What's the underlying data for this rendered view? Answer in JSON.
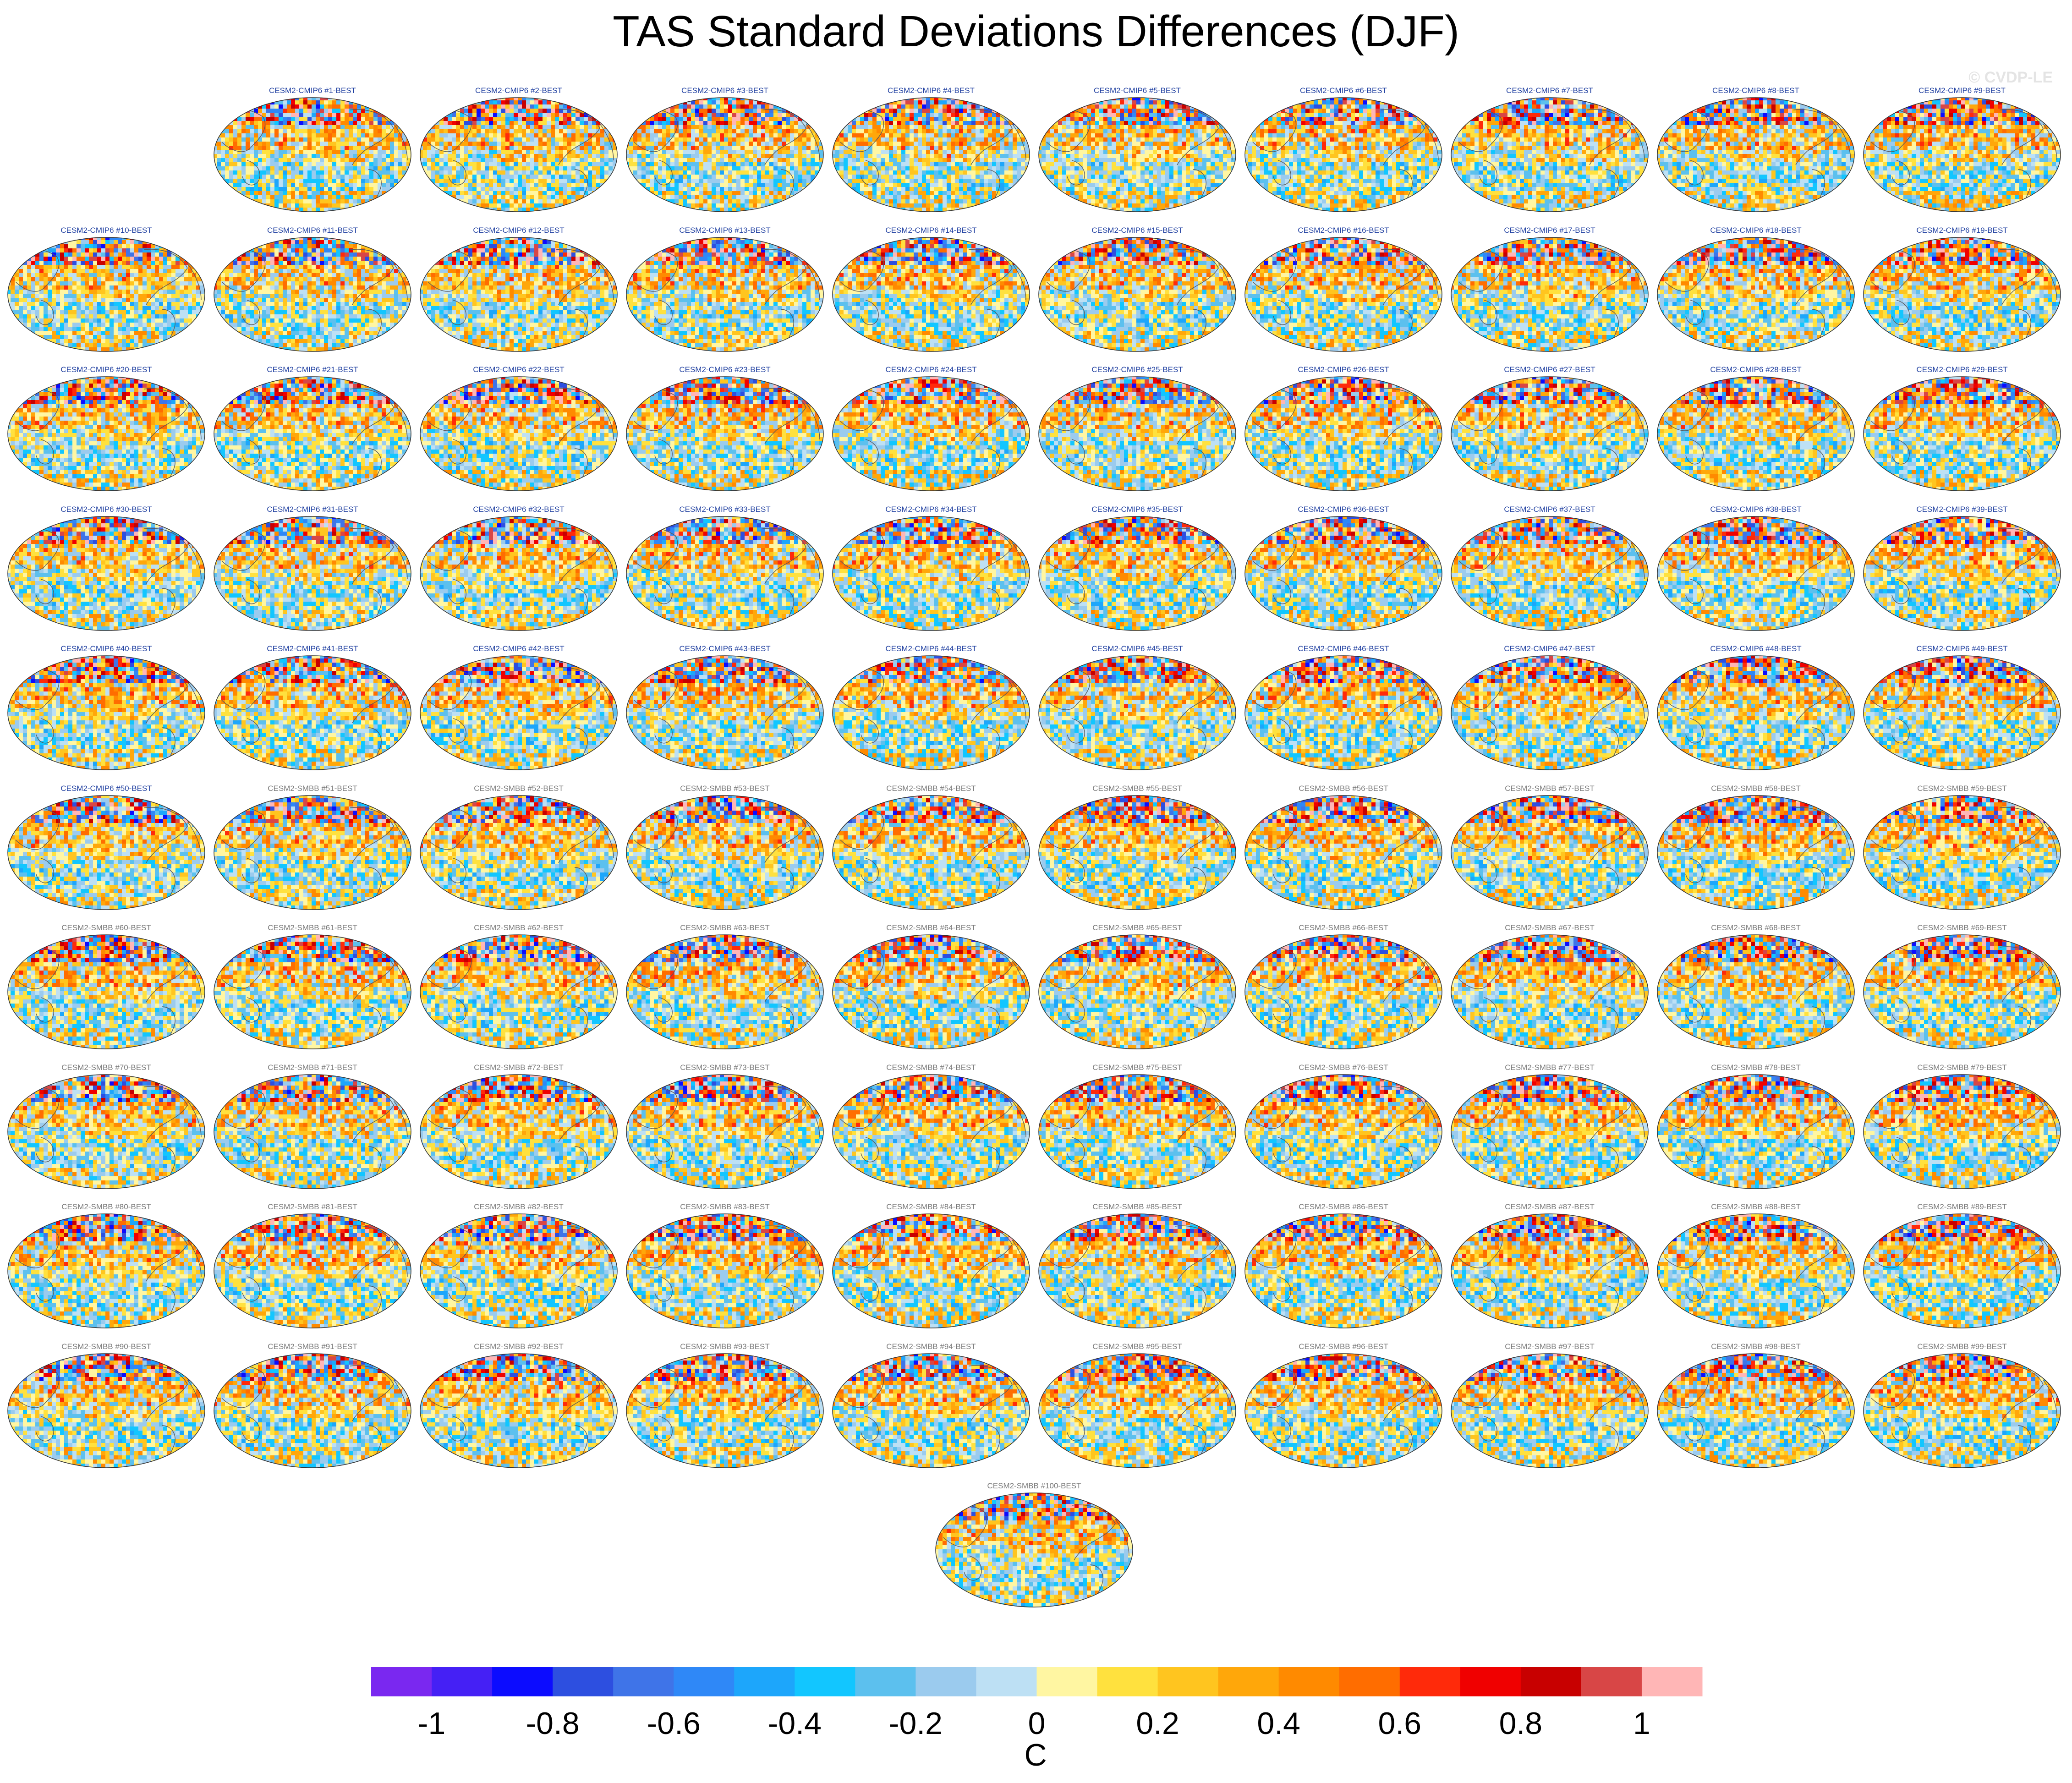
{
  "title": "TAS Standard Deviations Differences (DJF)",
  "watermark": "© CVDP-LE",
  "chart_data": {
    "type": "map-panels",
    "variable": "TAS",
    "season": "DJF",
    "projection": "Robinson (global, Pacific-centered)",
    "panels": [
      "CESM2-CMIP6 #1-BEST",
      "CESM2-CMIP6 #2-BEST",
      "CESM2-CMIP6 #3-BEST",
      "CESM2-CMIP6 #4-BEST",
      "CESM2-CMIP6 #5-BEST",
      "CESM2-CMIP6 #6-BEST",
      "CESM2-CMIP6 #7-BEST",
      "CESM2-CMIP6 #8-BEST",
      "CESM2-CMIP6 #9-BEST",
      "CESM2-CMIP6 #10-BEST",
      "CESM2-CMIP6 #11-BEST",
      "CESM2-CMIP6 #12-BEST",
      "CESM2-CMIP6 #13-BEST",
      "CESM2-CMIP6 #14-BEST",
      "CESM2-CMIP6 #15-BEST",
      "CESM2-CMIP6 #16-BEST",
      "CESM2-CMIP6 #17-BEST",
      "CESM2-CMIP6 #18-BEST",
      "CESM2-CMIP6 #19-BEST",
      "CESM2-CMIP6 #20-BEST",
      "CESM2-CMIP6 #21-BEST",
      "CESM2-CMIP6 #22-BEST",
      "CESM2-CMIP6 #23-BEST",
      "CESM2-CMIP6 #24-BEST",
      "CESM2-CMIP6 #25-BEST",
      "CESM2-CMIP6 #26-BEST",
      "CESM2-CMIP6 #27-BEST",
      "CESM2-CMIP6 #28-BEST",
      "CESM2-CMIP6 #29-BEST",
      "CESM2-CMIP6 #30-BEST",
      "CESM2-CMIP6 #31-BEST",
      "CESM2-CMIP6 #32-BEST",
      "CESM2-CMIP6 #33-BEST",
      "CESM2-CMIP6 #34-BEST",
      "CESM2-CMIP6 #35-BEST",
      "CESM2-CMIP6 #36-BEST",
      "CESM2-CMIP6 #37-BEST",
      "CESM2-CMIP6 #38-BEST",
      "CESM2-CMIP6 #39-BEST",
      "CESM2-CMIP6 #40-BEST",
      "CESM2-CMIP6 #41-BEST",
      "CESM2-CMIP6 #42-BEST",
      "CESM2-CMIP6 #43-BEST",
      "CESM2-CMIP6 #44-BEST",
      "CESM2-CMIP6 #45-BEST",
      "CESM2-CMIP6 #46-BEST",
      "CESM2-CMIP6 #47-BEST",
      "CESM2-CMIP6 #48-BEST",
      "CESM2-CMIP6 #49-BEST",
      "CESM2-CMIP6 #50-BEST",
      "CESM2-SMBB #51-BEST",
      "CESM2-SMBB #52-BEST",
      "CESM2-SMBB #53-BEST",
      "CESM2-SMBB #54-BEST",
      "CESM2-SMBB #55-BEST",
      "CESM2-SMBB #56-BEST",
      "CESM2-SMBB #57-BEST",
      "CESM2-SMBB #58-BEST",
      "CESM2-SMBB #59-BEST",
      "CESM2-SMBB #60-BEST",
      "CESM2-SMBB #61-BEST",
      "CESM2-SMBB #62-BEST",
      "CESM2-SMBB #63-BEST",
      "CESM2-SMBB #64-BEST",
      "CESM2-SMBB #65-BEST",
      "CESM2-SMBB #66-BEST",
      "CESM2-SMBB #67-BEST",
      "CESM2-SMBB #68-BEST",
      "CESM2-SMBB #69-BEST",
      "CESM2-SMBB #70-BEST",
      "CESM2-SMBB #71-BEST",
      "CESM2-SMBB #72-BEST",
      "CESM2-SMBB #73-BEST",
      "CESM2-SMBB #74-BEST",
      "CESM2-SMBB #75-BEST",
      "CESM2-SMBB #76-BEST",
      "CESM2-SMBB #77-BEST",
      "CESM2-SMBB #78-BEST",
      "CESM2-SMBB #79-BEST",
      "CESM2-SMBB #80-BEST",
      "CESM2-SMBB #81-BEST",
      "CESM2-SMBB #82-BEST",
      "CESM2-SMBB #83-BEST",
      "CESM2-SMBB #84-BEST",
      "CESM2-SMBB #85-BEST",
      "CESM2-SMBB #86-BEST",
      "CESM2-SMBB #87-BEST",
      "CESM2-SMBB #88-BEST",
      "CESM2-SMBB #89-BEST",
      "CESM2-SMBB #90-BEST",
      "CESM2-SMBB #91-BEST",
      "CESM2-SMBB #92-BEST",
      "CESM2-SMBB #93-BEST",
      "CESM2-SMBB #94-BEST",
      "CESM2-SMBB #95-BEST",
      "CESM2-SMBB #96-BEST",
      "CESM2-SMBB #97-BEST",
      "CESM2-SMBB #98-BEST",
      "CESM2-SMBB #99-BEST",
      "CESM2-SMBB #100-BEST"
    ],
    "ensemble_title_colors": {
      "CESM2-CMIP6": "#1f3fa0",
      "CESM2-SMBB": "#7a7a7a"
    },
    "colorbar": {
      "unit": "C",
      "range": [
        -1.1,
        1.1
      ],
      "step": 0.1,
      "colors": [
        "#7a28f0",
        "#4520f5",
        "#0c0cff",
        "#2d4fe0",
        "#3f74e8",
        "#2f88f7",
        "#1da6fb",
        "#12c6ff",
        "#5cc0ee",
        "#9bcbee",
        "#bde0f4",
        "#fff6a2",
        "#ffe13e",
        "#ffc51f",
        "#ffa70a",
        "#ff8a00",
        "#ff6d00",
        "#ff2a0a",
        "#f00000",
        "#c80000",
        "#d84646",
        "#ffb6b6"
      ],
      "tick_labels": [
        "-1",
        "-0.8",
        "-0.6",
        "-0.4",
        "-0.2",
        "0",
        "0.2",
        "0.4",
        "0.6",
        "0.8",
        "1"
      ],
      "tick_values": [
        -1,
        -0.8,
        -0.6,
        -0.4,
        -0.2,
        0,
        0.2,
        0.4,
        0.6,
        0.8,
        1
      ]
    }
  }
}
